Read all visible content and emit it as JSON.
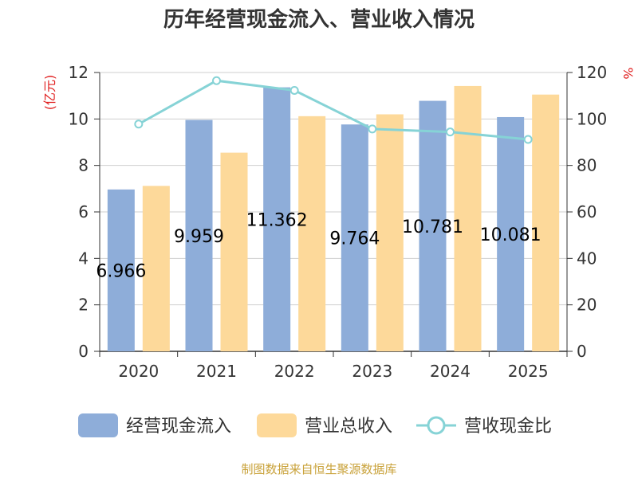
{
  "title": "历年经营现金流入、营业收入情况",
  "source_note": "制图数据来自恒生聚源数据库",
  "chart_data": {
    "type": "bar",
    "categories": [
      "2020",
      "2021",
      "2022",
      "2023",
      "2024",
      "2025"
    ],
    "series": [
      {
        "name": "经营现金流入",
        "kind": "bar",
        "axis": "left",
        "color": "#8eadd9",
        "values": [
          6.966,
          9.959,
          11.362,
          9.764,
          10.781,
          10.081
        ],
        "labels": [
          "6.966",
          "9.959",
          "11.362",
          "9.764",
          "10.781",
          "10.081"
        ]
      },
      {
        "name": "营业总收入",
        "kind": "bar",
        "axis": "left",
        "color": "#fdd99a",
        "values": [
          7.12,
          8.55,
          10.12,
          10.2,
          11.42,
          11.05
        ]
      },
      {
        "name": "营收现金比",
        "kind": "line",
        "axis": "right",
        "color": "#86d3d6",
        "values": [
          97.8,
          116.5,
          112.3,
          95.7,
          94.4,
          91.2
        ]
      }
    ],
    "left_axis": {
      "unit": "(亿元)",
      "min": 0,
      "max": 12,
      "ticks": [
        0,
        2,
        4,
        6,
        8,
        10,
        12
      ]
    },
    "right_axis": {
      "unit": "%",
      "min": 0,
      "max": 120,
      "ticks": [
        0,
        20,
        40,
        60,
        80,
        100,
        120
      ]
    },
    "grid": true,
    "legend_position": "bottom"
  }
}
